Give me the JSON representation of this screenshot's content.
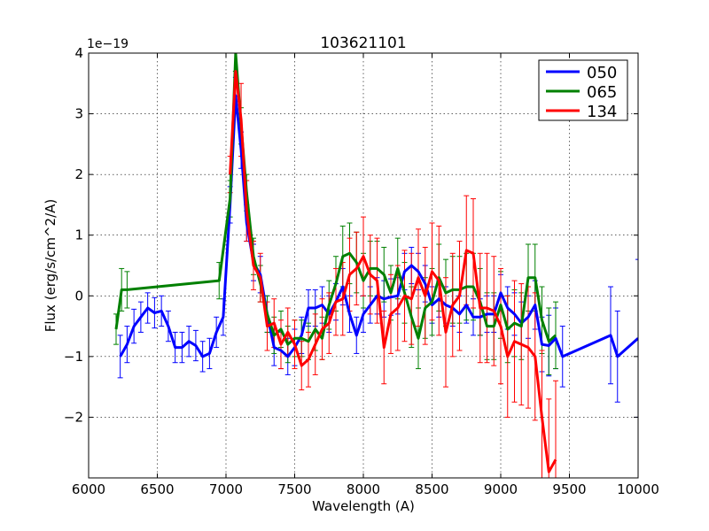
{
  "chart_data": {
    "type": "line",
    "title": "103621101",
    "xlabel": "Wavelength (A)",
    "ylabel": "Flux (erg/s/cm^2/A)",
    "offset_label": "1e−19",
    "xlim": [
      6000,
      10000
    ],
    "ylim": [
      -3,
      4
    ],
    "xticks": [
      6000,
      6500,
      7000,
      7500,
      8000,
      8500,
      9000,
      9500,
      10000
    ],
    "yticks": [
      -2,
      -1,
      0,
      1,
      2,
      3,
      4
    ],
    "xtick_labels": [
      "6000",
      "6500",
      "7000",
      "7500",
      "8000",
      "8500",
      "9000",
      "9500",
      "10000"
    ],
    "ytick_labels": [
      "−2",
      "−1",
      "0",
      "1",
      "2",
      "3",
      "4"
    ],
    "grid": true,
    "legend_location": "top-right",
    "series": [
      {
        "name": "050",
        "color": "#0000ff",
        "points": [
          [
            6230,
            -1.0
          ],
          [
            6280,
            -0.8
          ],
          [
            6330,
            -0.5
          ],
          [
            6380,
            -0.35
          ],
          [
            6430,
            -0.2
          ],
          [
            6480,
            -0.28
          ],
          [
            6530,
            -0.25
          ],
          [
            6580,
            -0.5
          ],
          [
            6630,
            -0.85
          ],
          [
            6680,
            -0.85
          ],
          [
            6730,
            -0.75
          ],
          [
            6780,
            -0.82
          ],
          [
            6830,
            -1.0
          ],
          [
            6880,
            -0.95
          ],
          [
            6930,
            -0.6
          ],
          [
            6980,
            -0.35
          ],
          [
            7030,
            1.5
          ],
          [
            7070,
            3.3
          ],
          [
            7110,
            2.4
          ],
          [
            7150,
            1.2
          ],
          [
            7200,
            0.55
          ],
          [
            7250,
            0.35
          ],
          [
            7300,
            -0.3
          ],
          [
            7350,
            -0.85
          ],
          [
            7400,
            -0.9
          ],
          [
            7450,
            -1.0
          ],
          [
            7500,
            -0.85
          ],
          [
            7550,
            -0.65
          ],
          [
            7600,
            -0.2
          ],
          [
            7650,
            -0.2
          ],
          [
            7700,
            -0.15
          ],
          [
            7750,
            -0.3
          ],
          [
            7800,
            -0.1
          ],
          [
            7850,
            0.15
          ],
          [
            7900,
            -0.3
          ],
          [
            7950,
            -0.65
          ],
          [
            8000,
            -0.3
          ],
          [
            8050,
            -0.15
          ],
          [
            8100,
            0.0
          ],
          [
            8150,
            -0.05
          ],
          [
            8200,
            -0.02
          ],
          [
            8250,
            0.0
          ],
          [
            8300,
            0.4
          ],
          [
            8350,
            0.5
          ],
          [
            8400,
            0.4
          ],
          [
            8450,
            0.2
          ],
          [
            8500,
            -0.15
          ],
          [
            8550,
            -0.05
          ],
          [
            8600,
            -0.15
          ],
          [
            8650,
            -0.2
          ],
          [
            8700,
            -0.3
          ],
          [
            8750,
            -0.15
          ],
          [
            8800,
            -0.35
          ],
          [
            8850,
            -0.35
          ],
          [
            8900,
            -0.3
          ],
          [
            8950,
            -0.3
          ],
          [
            9000,
            0.05
          ],
          [
            9050,
            -0.2
          ],
          [
            9100,
            -0.3
          ],
          [
            9150,
            -0.45
          ],
          [
            9200,
            -0.35
          ],
          [
            9250,
            -0.15
          ],
          [
            9300,
            -0.8
          ],
          [
            9350,
            -0.82
          ],
          [
            9400,
            -0.7
          ],
          [
            9450,
            -1.0
          ],
          [
            9800,
            -0.65
          ],
          [
            9850,
            -1.0
          ],
          [
            10000,
            -0.7
          ]
        ],
        "errors": [
          0.35,
          0.3,
          0.28,
          0.25,
          0.25,
          0.25,
          0.25,
          0.25,
          0.25,
          0.25,
          0.25,
          0.25,
          0.25,
          0.25,
          0.25,
          0.3,
          0.3,
          0.3,
          0.3,
          0.3,
          0.3,
          0.3,
          0.3,
          0.3,
          0.3,
          0.3,
          0.3,
          0.3,
          0.3,
          0.3,
          0.3,
          0.3,
          0.3,
          0.3,
          0.3,
          0.3,
          0.3,
          0.3,
          0.3,
          0.3,
          0.3,
          0.3,
          0.3,
          0.3,
          0.3,
          0.3,
          0.3,
          0.3,
          0.3,
          0.3,
          0.3,
          0.3,
          0.3,
          0.3,
          0.3,
          0.3,
          0.3,
          0.35,
          0.35,
          0.35,
          0.35,
          0.4,
          0.45,
          0.5,
          0.5,
          0.5,
          0.8,
          0.75,
          1.3
        ]
      },
      {
        "name": "065",
        "color": "#008000",
        "points": [
          [
            6200,
            -0.55
          ],
          [
            6240,
            0.1
          ],
          [
            6280,
            0.1
          ],
          [
            6950,
            0.25
          ],
          [
            7030,
            1.6
          ],
          [
            7070,
            4.0
          ],
          [
            7110,
            2.8
          ],
          [
            7150,
            1.7
          ],
          [
            7200,
            0.65
          ],
          [
            7250,
            0.2
          ],
          [
            7300,
            -0.3
          ],
          [
            7350,
            -0.65
          ],
          [
            7400,
            -0.55
          ],
          [
            7450,
            -0.8
          ],
          [
            7500,
            -0.7
          ],
          [
            7550,
            -0.7
          ],
          [
            7600,
            -0.75
          ],
          [
            7650,
            -0.55
          ],
          [
            7700,
            -0.7
          ],
          [
            7750,
            -0.15
          ],
          [
            7800,
            0.2
          ],
          [
            7850,
            0.65
          ],
          [
            7900,
            0.7
          ],
          [
            7950,
            0.55
          ],
          [
            8000,
            0.25
          ],
          [
            8050,
            0.45
          ],
          [
            8100,
            0.45
          ],
          [
            8150,
            0.35
          ],
          [
            8200,
            0.05
          ],
          [
            8250,
            0.45
          ],
          [
            8300,
            0.05
          ],
          [
            8350,
            -0.35
          ],
          [
            8400,
            -0.7
          ],
          [
            8450,
            -0.2
          ],
          [
            8500,
            -0.1
          ],
          [
            8550,
            0.3
          ],
          [
            8600,
            0.05
          ],
          [
            8650,
            0.1
          ],
          [
            8700,
            0.1
          ],
          [
            8750,
            0.15
          ],
          [
            8800,
            0.15
          ],
          [
            8850,
            -0.1
          ],
          [
            8900,
            -0.5
          ],
          [
            8950,
            -0.5
          ],
          [
            9000,
            -0.15
          ],
          [
            9050,
            -0.55
          ],
          [
            9100,
            -0.45
          ],
          [
            9150,
            -0.5
          ],
          [
            9200,
            0.3
          ],
          [
            9250,
            0.3
          ],
          [
            9300,
            -0.4
          ],
          [
            9350,
            -0.75
          ],
          [
            9400,
            -0.65
          ]
        ],
        "errors": [
          0.25,
          0.35,
          0.3,
          0.3,
          0.3,
          0.3,
          0.3,
          0.3,
          0.3,
          0.3,
          0.3,
          0.3,
          0.3,
          0.3,
          0.3,
          0.3,
          0.3,
          0.35,
          0.35,
          0.4,
          0.45,
          0.5,
          0.5,
          0.5,
          0.45,
          0.45,
          0.45,
          0.45,
          0.45,
          0.5,
          0.5,
          0.5,
          0.5,
          0.5,
          0.55,
          0.55,
          0.55,
          0.55,
          0.55,
          0.55,
          0.55,
          0.55,
          0.55,
          0.55,
          0.55,
          0.55,
          0.55,
          0.55,
          0.55,
          0.55,
          0.55,
          0.55,
          0.55
        ]
      },
      {
        "name": "134",
        "color": "#ff0000",
        "points": [
          [
            7030,
            2.0
          ],
          [
            7070,
            3.7
          ],
          [
            7110,
            2.9
          ],
          [
            7150,
            1.4
          ],
          [
            7200,
            0.5
          ],
          [
            7250,
            0.3
          ],
          [
            7300,
            -0.5
          ],
          [
            7350,
            -0.45
          ],
          [
            7400,
            -0.8
          ],
          [
            7450,
            -0.6
          ],
          [
            7500,
            -0.8
          ],
          [
            7550,
            -1.15
          ],
          [
            7600,
            -1.05
          ],
          [
            7650,
            -0.8
          ],
          [
            7700,
            -0.55
          ],
          [
            7750,
            -0.45
          ],
          [
            7800,
            -0.1
          ],
          [
            7850,
            -0.05
          ],
          [
            7900,
            0.35
          ],
          [
            7950,
            0.45
          ],
          [
            8000,
            0.65
          ],
          [
            8050,
            0.35
          ],
          [
            8100,
            0.25
          ],
          [
            8150,
            -0.85
          ],
          [
            8200,
            -0.3
          ],
          [
            8250,
            -0.2
          ],
          [
            8300,
            0.0
          ],
          [
            8350,
            -0.05
          ],
          [
            8400,
            0.3
          ],
          [
            8450,
            0.0
          ],
          [
            8500,
            0.4
          ],
          [
            8550,
            0.25
          ],
          [
            8600,
            -0.6
          ],
          [
            8650,
            -0.15
          ],
          [
            8700,
            0.0
          ],
          [
            8750,
            0.75
          ],
          [
            8800,
            0.7
          ],
          [
            8850,
            -0.2
          ],
          [
            8900,
            -0.2
          ],
          [
            8950,
            -0.25
          ],
          [
            9000,
            -0.5
          ],
          [
            9050,
            -1.0
          ],
          [
            9100,
            -0.75
          ],
          [
            9150,
            -0.8
          ],
          [
            9200,
            -0.85
          ],
          [
            9250,
            -1.0
          ],
          [
            9300,
            -2.0
          ],
          [
            9350,
            -2.9
          ],
          [
            9400,
            -2.7
          ]
        ],
        "errors": [
          0.3,
          0.5,
          0.6,
          0.5,
          0.4,
          0.4,
          0.4,
          0.4,
          0.4,
          0.4,
          0.4,
          0.4,
          0.45,
          0.5,
          0.5,
          0.5,
          0.55,
          0.6,
          0.6,
          0.6,
          0.65,
          0.65,
          0.7,
          0.6,
          0.65,
          0.7,
          0.75,
          0.75,
          0.8,
          0.8,
          0.8,
          0.9,
          0.9,
          0.85,
          0.9,
          0.9,
          0.9,
          0.9,
          0.9,
          0.9,
          0.95,
          1.0,
          1.0,
          1.0,
          1.0,
          1.05,
          1.1,
          1.2,
          1.3
        ]
      }
    ]
  }
}
